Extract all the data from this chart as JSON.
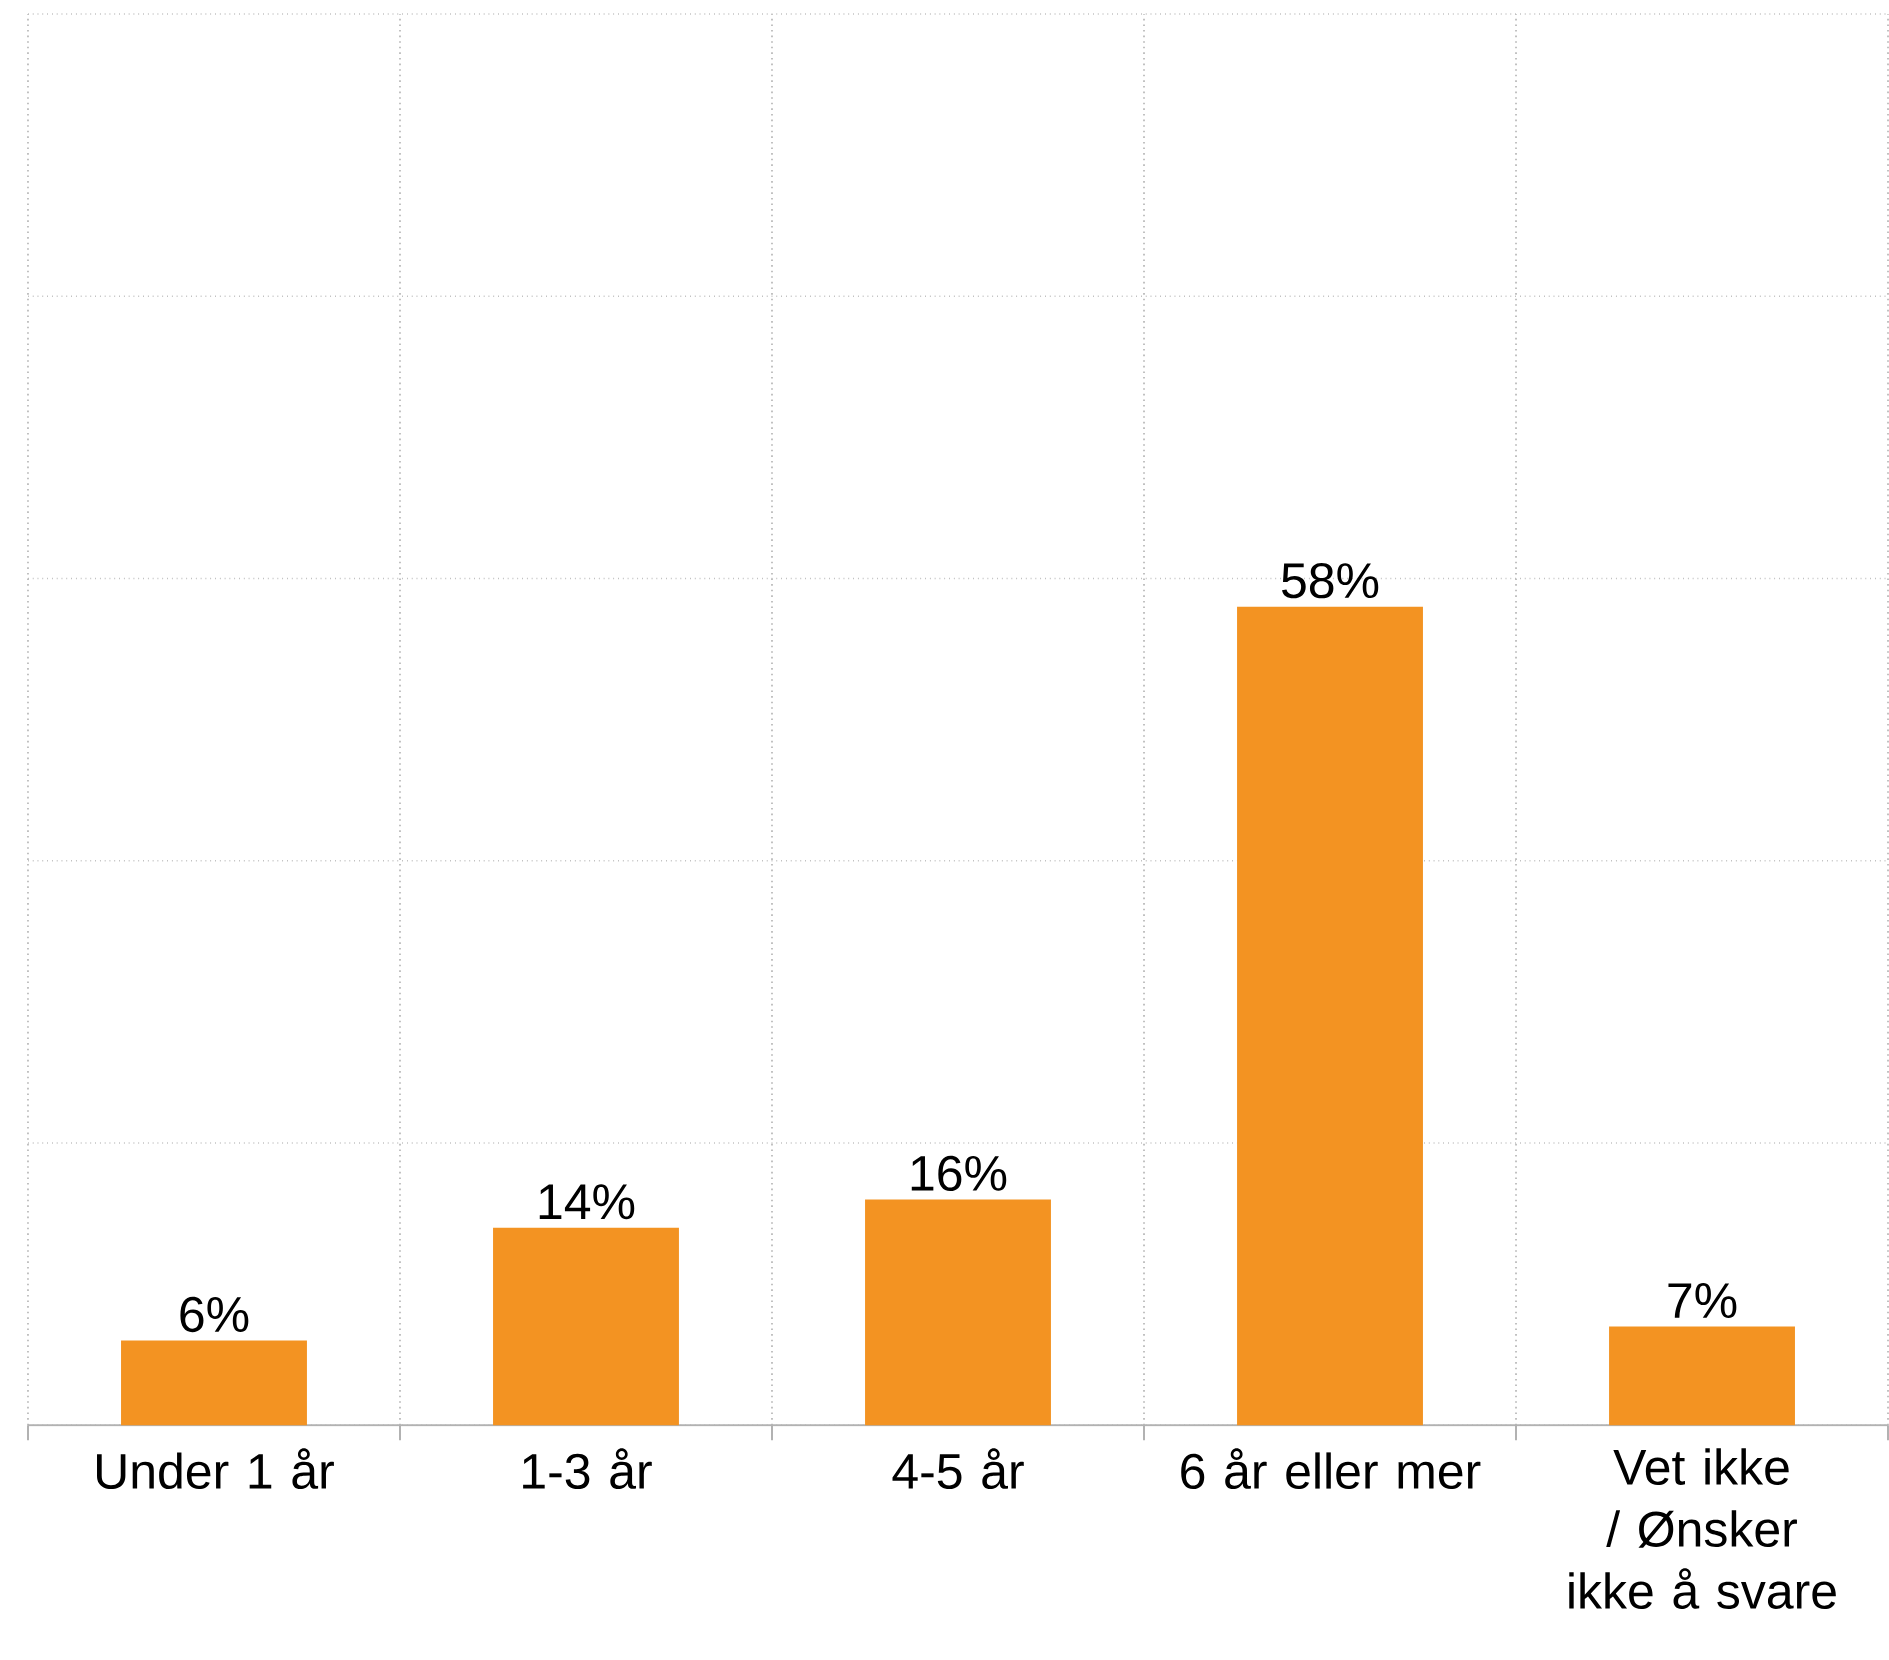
{
  "chart_data": {
    "type": "bar",
    "categories": [
      "Under 1 år",
      "1-3 år",
      "4-5 år",
      "6 år eller mer",
      "Vet ikke / Ønsker ikke å svare"
    ],
    "values": [
      6,
      14,
      16,
      58,
      7
    ],
    "value_labels": [
      "6%",
      "14%",
      "16%",
      "58%",
      "7%"
    ],
    "data_labels": true,
    "color": "#f39322",
    "ylim": [
      0,
      100
    ],
    "yticks": [
      {
        "value": 0,
        "label": null
      },
      {
        "value": 20,
        "label": null
      },
      {
        "value": 40,
        "label": null
      },
      {
        "value": 60,
        "label": null
      },
      {
        "value": 80,
        "label": null
      },
      {
        "value": 100,
        "label": null
      }
    ],
    "grid": true,
    "tick_labels": "x"
  }
}
